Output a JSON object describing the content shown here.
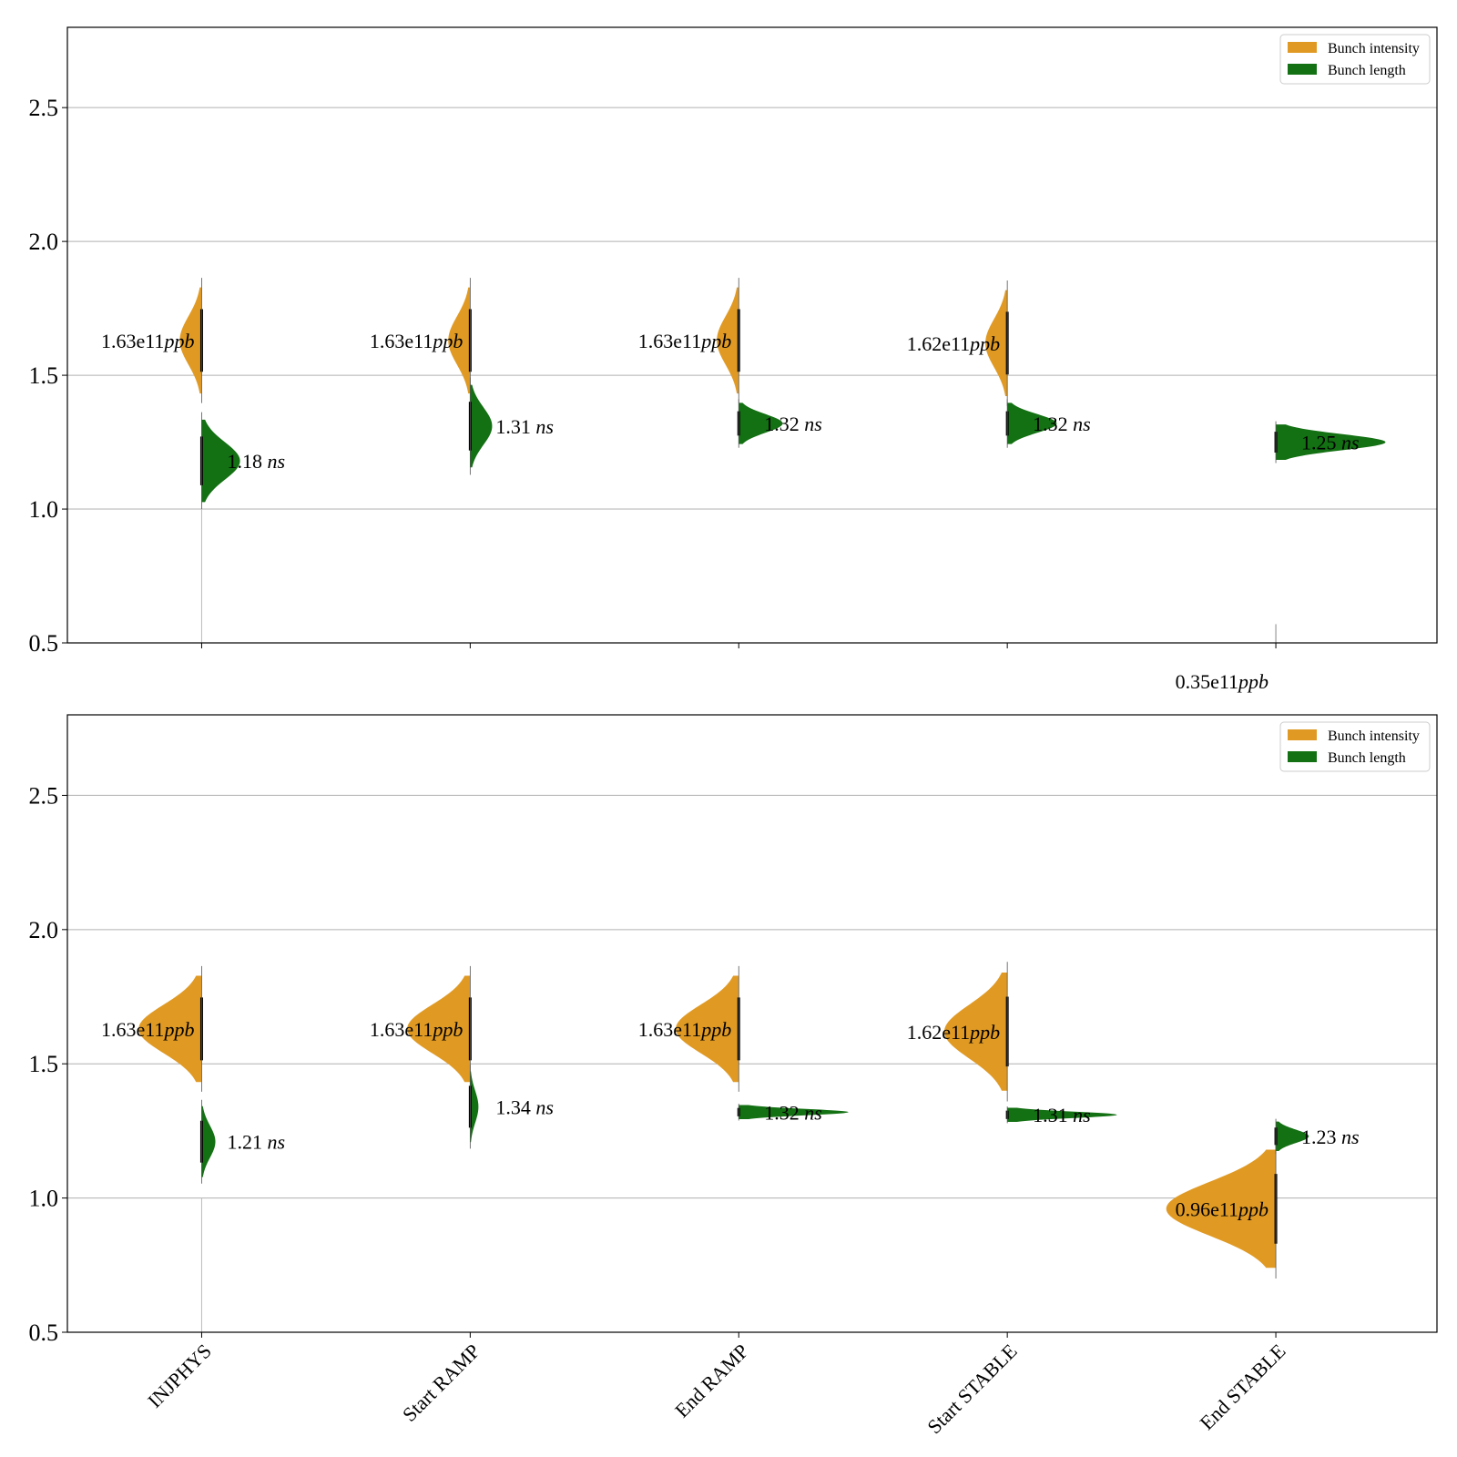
{
  "colors": {
    "intensity": "#e09a24",
    "length": "#137013",
    "grid": "#b0b0b0",
    "axis": "#000000"
  },
  "chart_data": [
    {
      "type": "violin",
      "panel": "top",
      "categories": [
        "INJPHYS",
        "Start RAMP",
        "End RAMP",
        "Start STABLE",
        "End STABLE"
      ],
      "ylim": [
        0.5,
        2.8
      ],
      "yticks": [
        0.5,
        1.0,
        1.5,
        2.0,
        2.5
      ],
      "grid": true,
      "legend": {
        "placement": "top-right",
        "entries": [
          "Bunch intensity",
          "Bunch length"
        ]
      },
      "series": [
        {
          "name": "Bunch intensity",
          "side": "left",
          "centers": [
            1.63,
            1.63,
            1.63,
            1.62,
            0.35
          ],
          "spread": [
            0.09,
            0.09,
            0.09,
            0.09,
            0.0
          ],
          "width": [
            0.08,
            0.08,
            0.08,
            0.08,
            0.0
          ],
          "labels": [
            "1.63e11",
            "1.63e11",
            "1.63e11",
            "1.62e11",
            "0.35e11"
          ],
          "unit": "ppb"
        },
        {
          "name": "Bunch length",
          "side": "right",
          "centers": [
            1.18,
            1.31,
            1.32,
            1.32,
            1.25
          ],
          "spread": [
            0.07,
            0.07,
            0.035,
            0.035,
            0.03
          ],
          "width": [
            0.14,
            0.08,
            0.16,
            0.18,
            0.4
          ],
          "labels": [
            "1.18",
            "1.31",
            "1.32",
            "1.32",
            "1.25"
          ],
          "unit": "ns"
        }
      ]
    },
    {
      "type": "violin",
      "panel": "bottom",
      "categories": [
        "INJPHYS",
        "Start RAMP",
        "End RAMP",
        "Start STABLE",
        "End STABLE"
      ],
      "ylim": [
        0.5,
        2.8
      ],
      "yticks": [
        0.5,
        1.0,
        1.5,
        2.0,
        2.5
      ],
      "grid": true,
      "legend": {
        "placement": "top-right",
        "entries": [
          "Bunch intensity",
          "Bunch length"
        ]
      },
      "series": [
        {
          "name": "Bunch intensity",
          "side": "left",
          "centers": [
            1.63,
            1.63,
            1.63,
            1.62,
            0.96
          ],
          "spread": [
            0.09,
            0.09,
            0.09,
            0.1,
            0.1
          ],
          "width": [
            0.23,
            0.23,
            0.23,
            0.23,
            0.4
          ],
          "labels": [
            "1.63e11",
            "1.63e11",
            "1.63e11",
            "1.62e11",
            "0.96e11"
          ],
          "unit": "ppb"
        },
        {
          "name": "Bunch length",
          "side": "right",
          "centers": [
            1.21,
            1.34,
            1.32,
            1.31,
            1.23
          ],
          "spread": [
            0.06,
            0.06,
            0.012,
            0.012,
            0.025
          ],
          "width": [
            0.05,
            0.03,
            0.4,
            0.4,
            0.12
          ],
          "labels": [
            "1.21",
            "1.34",
            "1.32",
            "1.31",
            "1.23"
          ],
          "unit": "ns"
        }
      ]
    }
  ]
}
